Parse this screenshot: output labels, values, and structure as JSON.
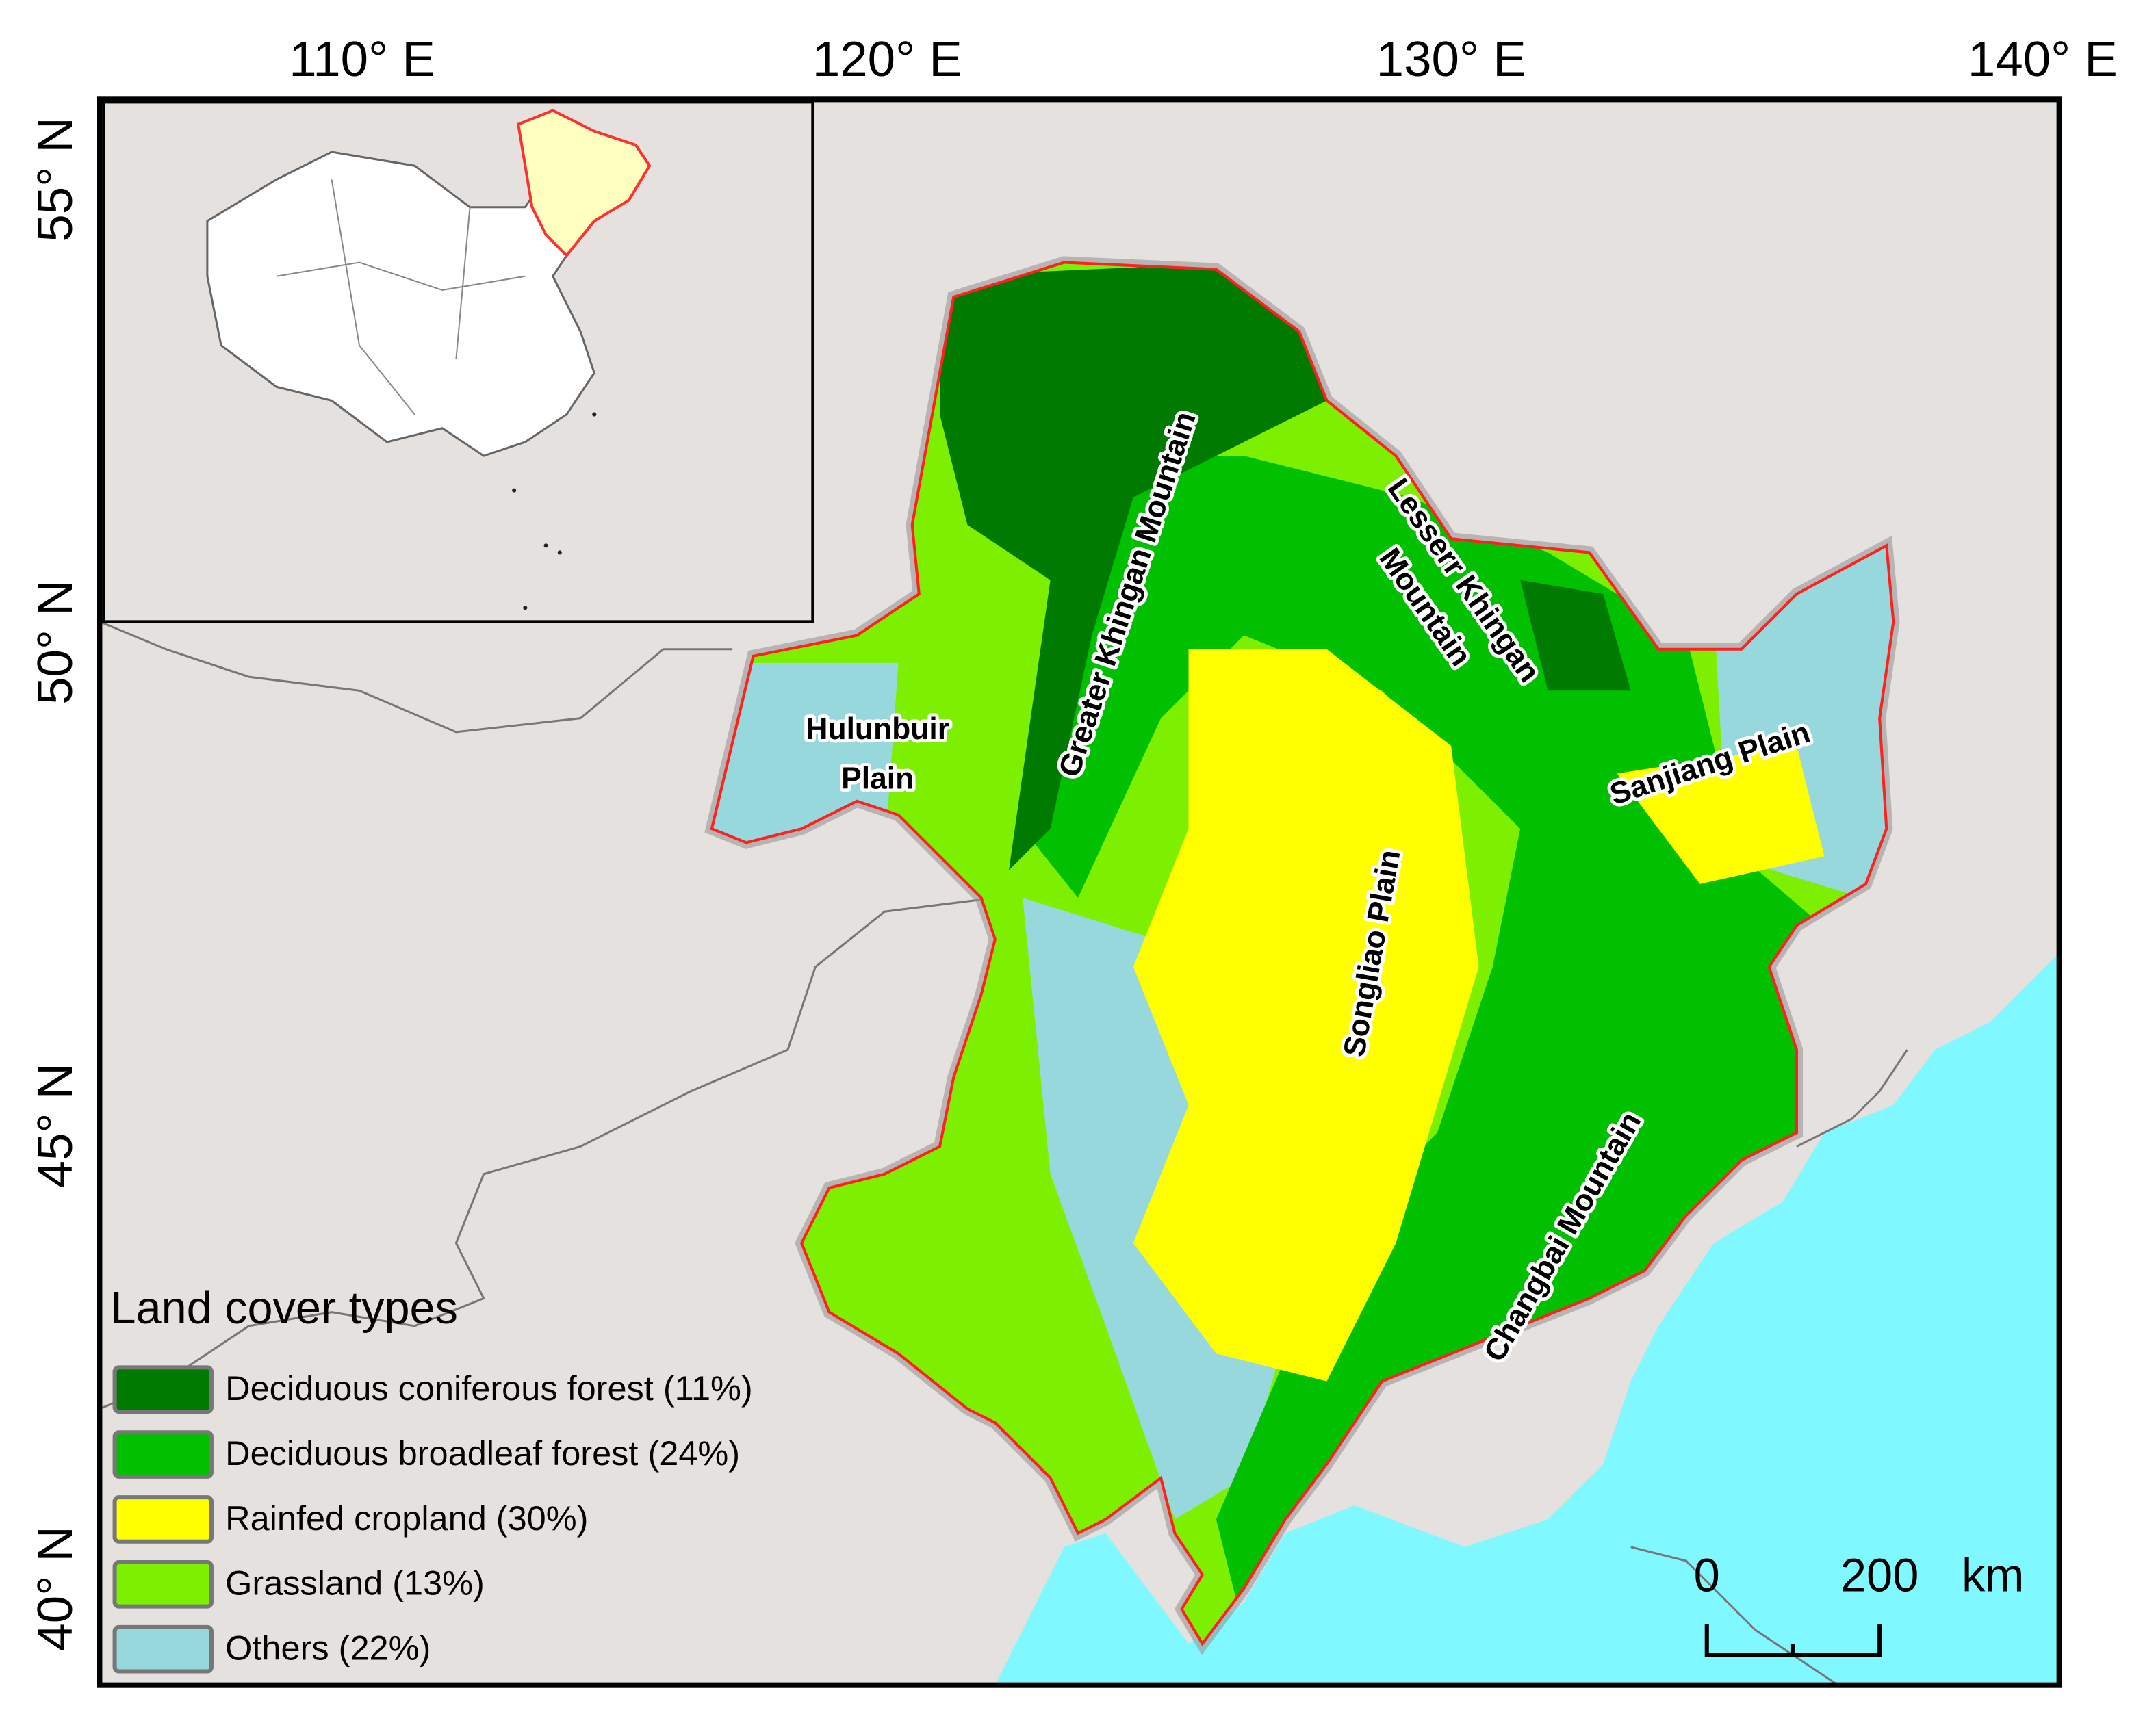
{
  "map": {
    "longitude_labels": [
      "110° E",
      "120° E",
      "130° E",
      "140° E"
    ],
    "latitude_labels": [
      "55° N",
      "50° N",
      "45° N",
      "40° N"
    ],
    "region_labels": [
      {
        "lines": [
          "Hulunbuir",
          "Plain"
        ]
      },
      {
        "lines": [
          "Greater Khingan Mountain"
        ]
      },
      {
        "lines": [
          "Lesserr Khingan",
          "Mountain"
        ]
      },
      {
        "lines": [
          "Sanjiang Plain"
        ]
      },
      {
        "lines": [
          "Songliao Plain"
        ]
      },
      {
        "lines": [
          "Changbai Mountain"
        ]
      }
    ],
    "legend": {
      "title": "Land cover types",
      "items": [
        {
          "label": "Deciduous coniferous forest (11%)",
          "color": "#007a00"
        },
        {
          "label": "Deciduous broadleaf forest (24%)",
          "color": "#00c000"
        },
        {
          "label": "Rainfed cropland (30%)",
          "color": "#ffff00"
        },
        {
          "label": "Grassland (13%)",
          "color": "#7cf000"
        },
        {
          "label": "Others (22%)",
          "color": "#96d8dc"
        }
      ]
    },
    "scale_bar": {
      "start": "0",
      "end": "200",
      "unit": "km"
    }
  }
}
